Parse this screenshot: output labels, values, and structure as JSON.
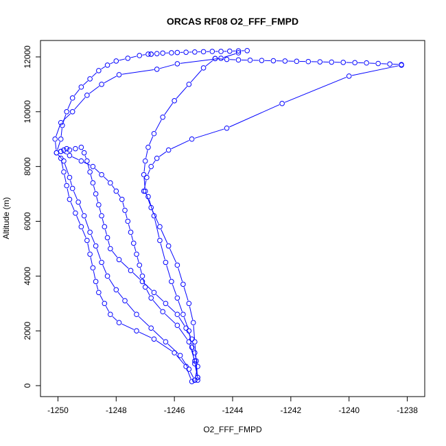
{
  "chart_data": {
    "type": "line",
    "title": "ORCAS RF08 O2_FFF_FMPD",
    "xlabel": "O2_FFF_FMPD",
    "ylabel": "Altitude (m)",
    "xlim": [
      -1250.6,
      -1237.4
    ],
    "ylim": [
      -400,
      12600
    ],
    "xticks": [
      -1250,
      -1248,
      -1246,
      -1244,
      -1242,
      -1240,
      -1238
    ],
    "yticks": [
      0,
      2000,
      4000,
      6000,
      8000,
      10000,
      12000
    ],
    "grid": false,
    "legend": "none",
    "marker": "open-circle",
    "series": [
      {
        "x": [
          -1245.4,
          -1245.6,
          -1246.0,
          -1246.7,
          -1247.3,
          -1247.9,
          -1248.2,
          -1248.4,
          -1248.6,
          -1248.7,
          -1248.8,
          -1248.9,
          -1249.0,
          -1249.2,
          -1249.4,
          -1249.6,
          -1249.7,
          -1249.8,
          -1249.9,
          -1250.05,
          -1249.9,
          -1249.85,
          -1249.7,
          -1249.5,
          -1249.2,
          -1248.9,
          -1248.6,
          -1248.3,
          -1248.0,
          -1247.6,
          -1247.2,
          -1246.9,
          -1246.8
        ],
        "y": [
          150,
          700,
          1200,
          1700,
          2000,
          2300,
          2600,
          3000,
          3400,
          3800,
          4300,
          4800,
          5300,
          5800,
          6300,
          6800,
          7300,
          7800,
          8300,
          8500,
          9000,
          9500,
          10000,
          10500,
          10900,
          11200,
          11500,
          11700,
          11850,
          11950,
          12050,
          12100,
          12100
        ]
      },
      {
        "x": [
          -1246.8,
          -1246.6,
          -1246.4,
          -1246.1,
          -1245.9,
          -1245.6,
          -1245.3,
          -1245.0,
          -1244.7,
          -1244.4,
          -1244.1,
          -1243.8,
          -1243.5
        ],
        "y": [
          12100,
          12120,
          12140,
          12150,
          12160,
          12170,
          12180,
          12190,
          12200,
          12200,
          12210,
          12220,
          12230
        ]
      },
      {
        "x": [
          -1243.8,
          -1244.4,
          -1245.9,
          -1246.6,
          -1247.9,
          -1248.5,
          -1249.0,
          -1249.5,
          -1249.9,
          -1250.1,
          -1250.05,
          -1249.8,
          -1249.6,
          -1249.5,
          -1249.3,
          -1249.1,
          -1248.9,
          -1248.7,
          -1248.5,
          -1248.3,
          -1248.0,
          -1247.7,
          -1247.3,
          -1246.8,
          -1246.3,
          -1245.8,
          -1245.5,
          -1245.3
        ],
        "y": [
          12150,
          11950,
          11750,
          11550,
          11350,
          11000,
          10600,
          10000,
          9600,
          9000,
          8500,
          8200,
          7600,
          7200,
          6700,
          6200,
          5600,
          5100,
          4500,
          4000,
          3500,
          3100,
          2600,
          2100,
          1600,
          1100,
          600,
          200
        ]
      },
      {
        "x": [
          -1245.3,
          -1245.2,
          -1245.3,
          -1245.4,
          -1245.6,
          -1245.9,
          -1246.3,
          -1246.7,
          -1247.1,
          -1247.5,
          -1247.9,
          -1248.2,
          -1248.3,
          -1248.4,
          -1248.5,
          -1248.6,
          -1248.7,
          -1248.8,
          -1248.9,
          -1249.0,
          -1249.1,
          -1249.2,
          -1249.4,
          -1249.6,
          -1249.7,
          -1249.8,
          -1249.9
        ],
        "y": [
          200,
          700,
          1200,
          1700,
          2100,
          2600,
          3000,
          3400,
          3800,
          4200,
          4600,
          5000,
          5400,
          5800,
          6200,
          6600,
          7000,
          7400,
          7800,
          8200,
          8500,
          8700,
          8650,
          8600,
          8650,
          8600,
          8550
        ]
      },
      {
        "x": [
          -1249.9,
          -1249.6,
          -1249.2,
          -1248.8,
          -1248.5,
          -1248.2,
          -1248.0,
          -1247.8,
          -1247.7,
          -1247.6,
          -1247.5,
          -1247.4,
          -1247.3,
          -1247.2,
          -1247.1,
          -1247.0,
          -1246.8,
          -1246.4,
          -1245.9,
          -1245.5,
          -1245.3,
          -1245.2
        ],
        "y": [
          8550,
          8400,
          8200,
          8000,
          7700,
          7400,
          7100,
          6800,
          6400,
          6000,
          5600,
          5200,
          4800,
          4400,
          4000,
          3600,
          3200,
          2700,
          2200,
          1600,
          900,
          300
        ]
      },
      {
        "x": [
          -1245.2,
          -1245.3,
          -1245.4,
          -1245.5,
          -1245.7,
          -1245.9,
          -1246.1,
          -1246.3,
          -1246.5,
          -1246.7,
          -1246.9,
          -1247.05,
          -1246.95,
          -1246.8,
          -1246.6,
          -1246.2,
          -1245.4,
          -1244.2,
          -1242.3,
          -1240.0,
          -1238.2
        ],
        "y": [
          300,
          800,
          1400,
          2000,
          2600,
          3200,
          3800,
          4500,
          5300,
          6200,
          6900,
          7100,
          7600,
          8000,
          8300,
          8600,
          9000,
          9400,
          10300,
          11300,
          11700
        ]
      },
      {
        "x": [
          -1238.2,
          -1238.6,
          -1239.0,
          -1239.4,
          -1239.8,
          -1240.2,
          -1240.6,
          -1241.0,
          -1241.4,
          -1241.8,
          -1242.2,
          -1242.6,
          -1243.0,
          -1243.4,
          -1243.8,
          -1244.2,
          -1244.6
        ],
        "y": [
          11720,
          11740,
          11760,
          11780,
          11790,
          11800,
          11810,
          11820,
          11830,
          11840,
          11850,
          11860,
          11870,
          11880,
          11890,
          11910,
          11940
        ]
      },
      {
        "x": [
          -1244.6,
          -1245.0,
          -1245.5,
          -1246.0,
          -1246.4,
          -1246.7,
          -1246.9,
          -1247.0,
          -1247.05,
          -1247.0,
          -1246.8,
          -1246.5,
          -1246.2,
          -1245.9,
          -1245.7,
          -1245.5,
          -1245.35,
          -1245.3,
          -1245.25,
          -1245.2
        ],
        "y": [
          11940,
          11600,
          11000,
          10400,
          9800,
          9200,
          8700,
          8200,
          7700,
          7100,
          6500,
          5800,
          5100,
          4400,
          3700,
          3000,
          2300,
          1600,
          900,
          200
        ]
      }
    ]
  }
}
